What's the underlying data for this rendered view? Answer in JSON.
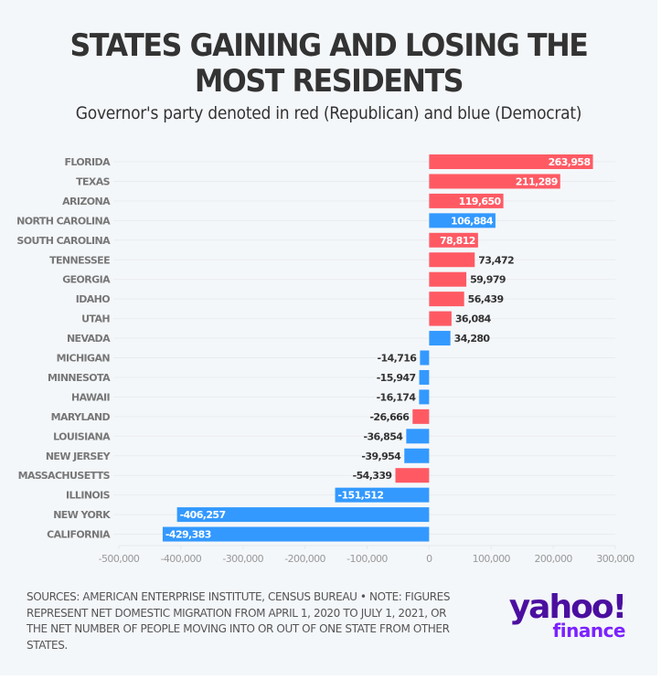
{
  "header": {
    "title_line1": "STATES GAINING AND LOSING THE",
    "title_line2": "MOST RESIDENTS",
    "subtitle": "Governor's party denoted in red (Republican) and blue (Democrat)"
  },
  "colors": {
    "republican": "#ff5a64",
    "democrat": "#3399ff",
    "background": "#f4f7fa"
  },
  "chart_data": {
    "type": "bar",
    "orientation": "horizontal",
    "title": "STATES GAINING AND LOSING THE MOST RESIDENTS",
    "subtitle": "Governor's party denoted in red (Republican) and blue (Democrat)",
    "xlabel": "",
    "ylabel": "",
    "xlim": [
      -500000,
      300000
    ],
    "xticks": [
      -500000,
      -400000,
      -300000,
      -200000,
      -100000,
      0,
      100000,
      200000,
      300000
    ],
    "xtick_labels": [
      "-500,000",
      "-400,000",
      "-300,000",
      "-200,000",
      "-100,000",
      "0",
      "100,000",
      "200,000",
      "300,000"
    ],
    "grid": true,
    "categories": [
      "FLORIDA",
      "TEXAS",
      "ARIZONA",
      "NORTH CAROLINA",
      "SOUTH CAROLINA",
      "TENNESSEE",
      "GEORGIA",
      "IDAHO",
      "UTAH",
      "NEVADA",
      "MICHIGAN",
      "MINNESOTA",
      "HAWAII",
      "MARYLAND",
      "LOUISIANA",
      "NEW JERSEY",
      "MASSACHUSETTS",
      "ILLINOIS",
      "NEW YORK",
      "CALIFORNIA"
    ],
    "values": [
      263958,
      211289,
      119650,
      106884,
      78812,
      73472,
      59979,
      56439,
      36084,
      34280,
      -14716,
      -15947,
      -16174,
      -26666,
      -36854,
      -39954,
      -54339,
      -151512,
      -406257,
      -429383
    ],
    "labels": [
      "263,958",
      "211,289",
      "119,650",
      "106,884",
      "78,812",
      "73,472",
      "59,979",
      "56,439",
      "36,084",
      "34,280",
      "-14,716",
      "-15,947",
      "-16,174",
      "-26,666",
      "-36,854",
      "-39,954",
      "-54,339",
      "-151,512",
      "-406,257",
      "-429,383"
    ],
    "party": [
      "R",
      "R",
      "R",
      "D",
      "R",
      "R",
      "R",
      "R",
      "R",
      "D",
      "D",
      "D",
      "D",
      "R",
      "D",
      "D",
      "R",
      "D",
      "D",
      "D"
    ],
    "legend": {
      "R": "Republican (red)",
      "D": "Democrat (blue)"
    }
  },
  "footer": {
    "note": "SOURCES: AMERICAN ENTERPRISE INSTITUTE, CENSUS BUREAU • NOTE: FIGURES REPRESENT NET DOMESTIC MIGRATION FROM APRIL 1, 2020 TO JULY 1, 2021, OR THE NET NUMBER OF PEOPLE MOVING INTO OR OUT OF ONE STATE FROM OTHER STATES.",
    "logo_top": "yahoo!",
    "logo_bottom": "finance"
  }
}
